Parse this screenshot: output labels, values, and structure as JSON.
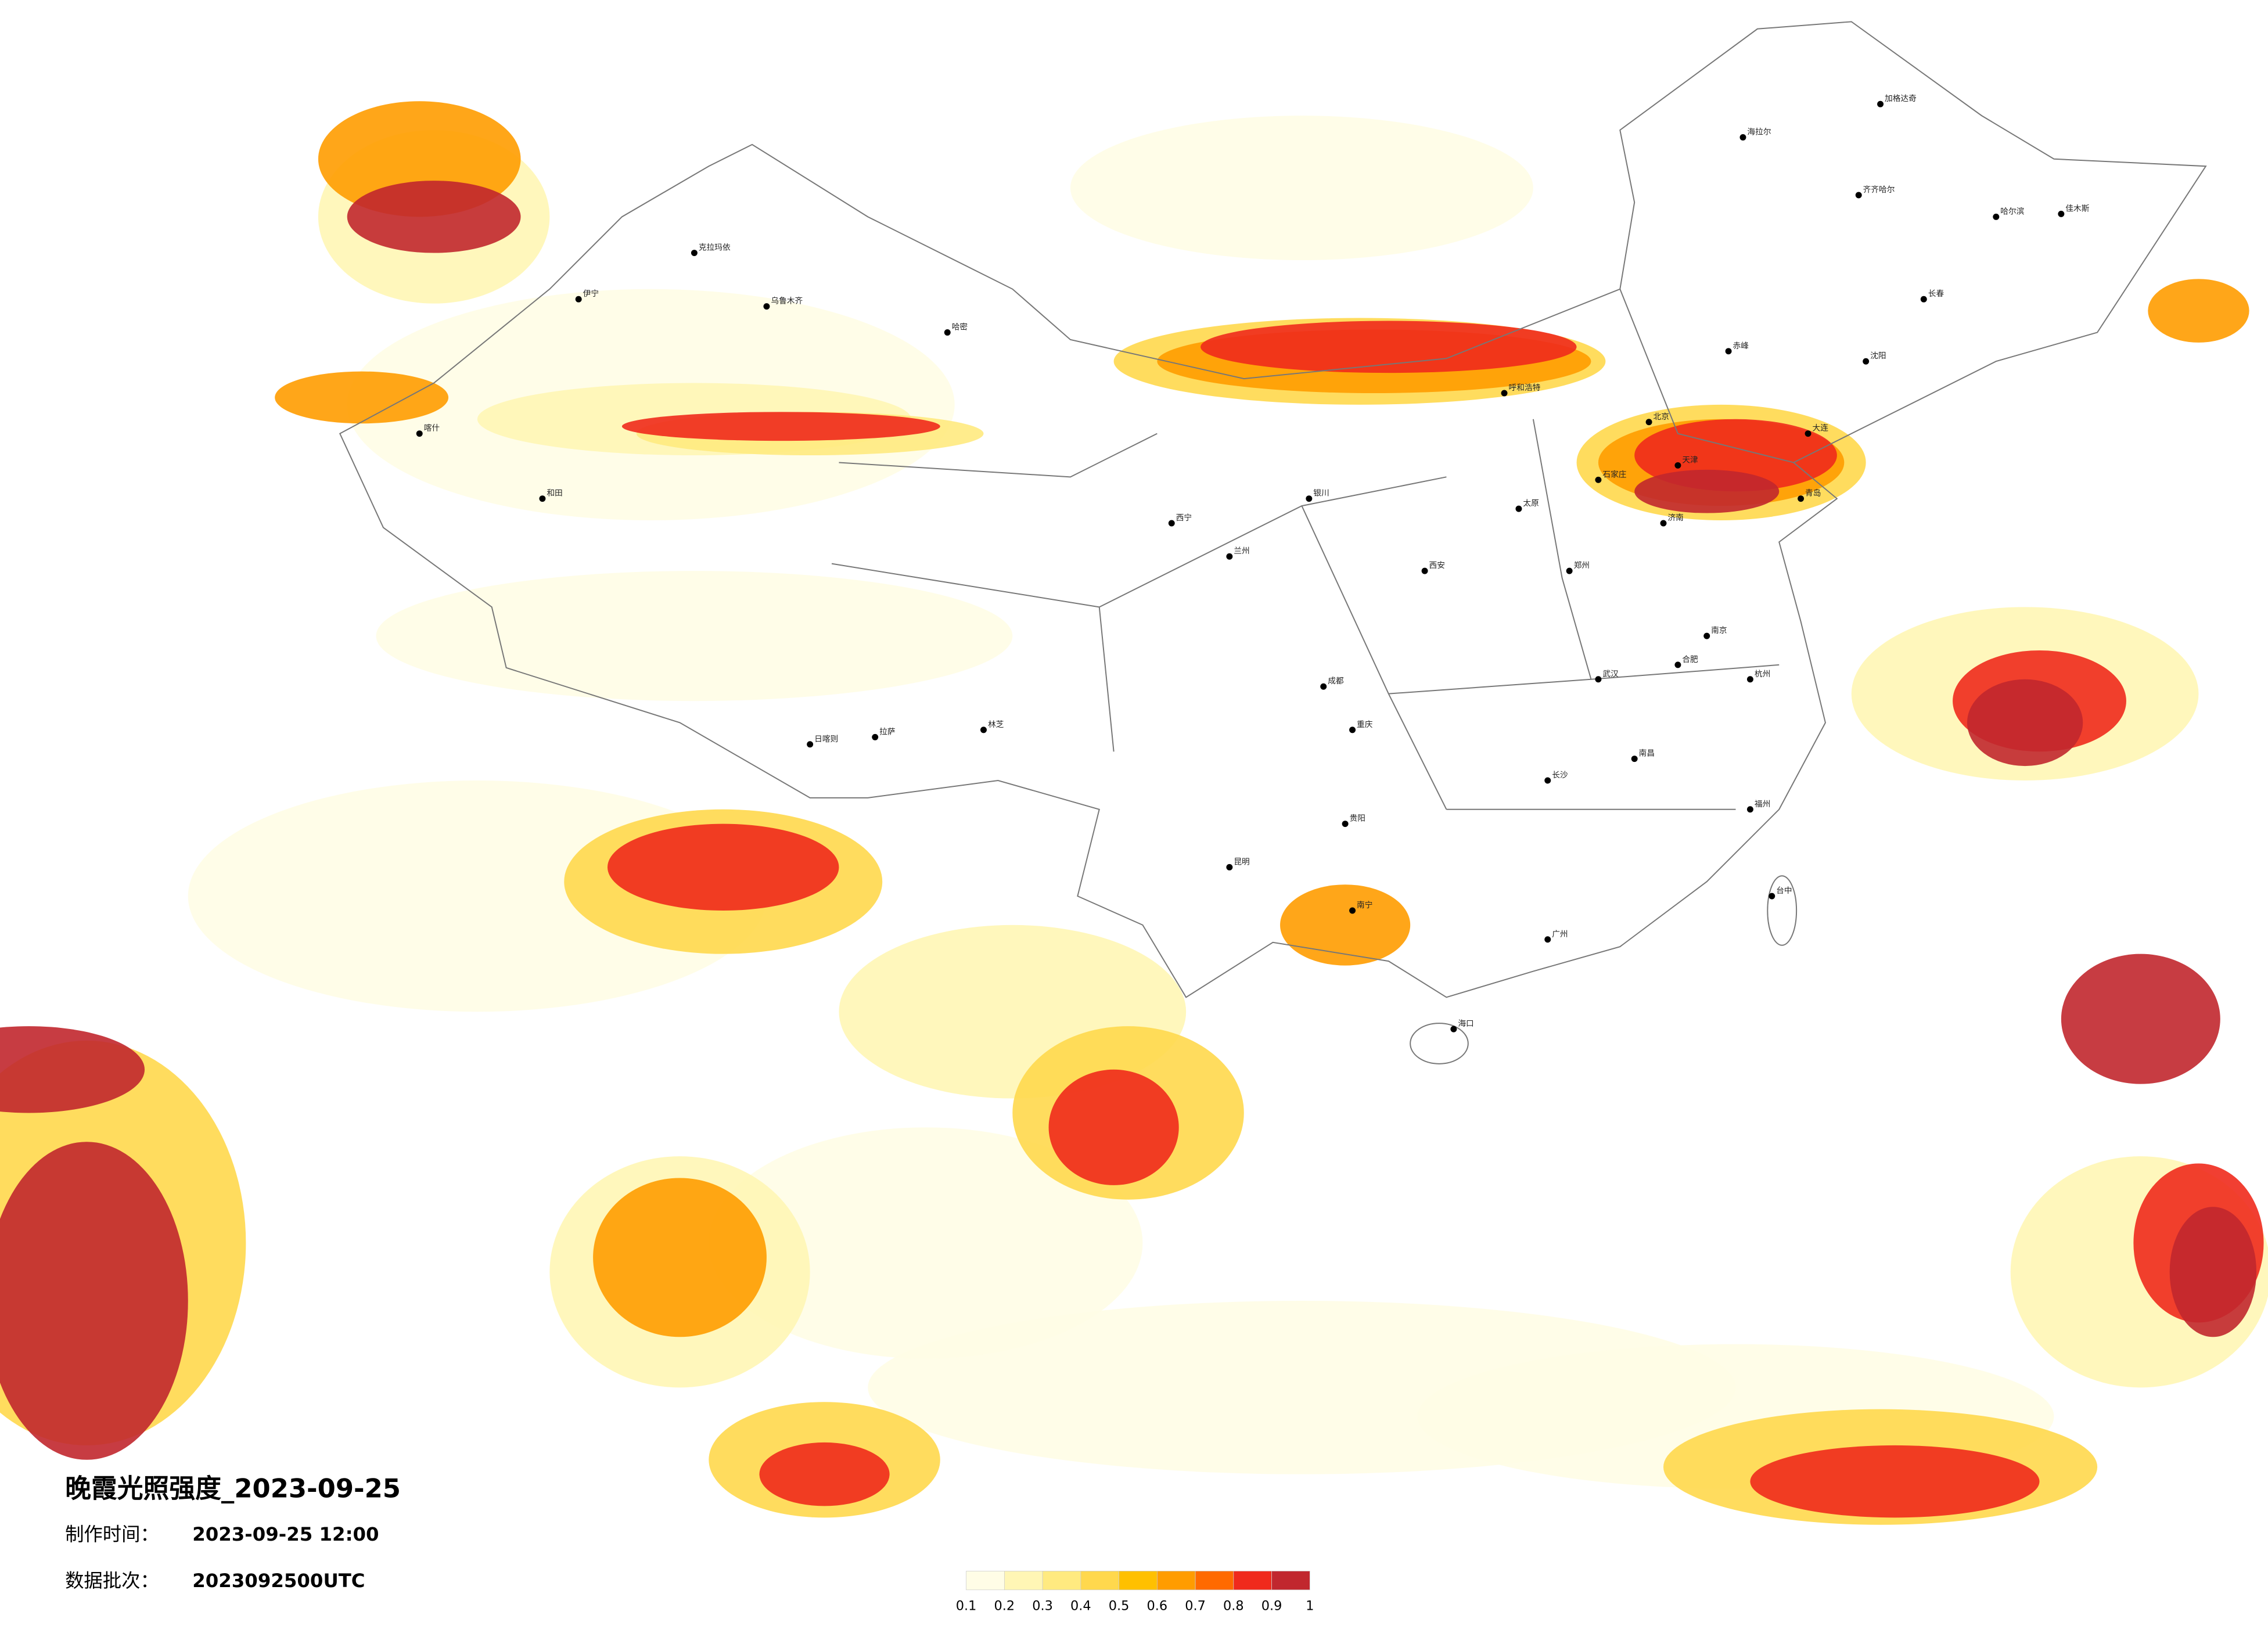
{
  "title": "晚霞光照强度_2023-09-25",
  "made_label": "制作时间：",
  "made_time": "2023-09-25 12:00",
  "batch_label": "数据批次：",
  "batch": "2023092500UTC",
  "colorbar": {
    "colors": [
      "#fffde6",
      "#fff6b5",
      "#ffea80",
      "#ffd84d",
      "#ffc000",
      "#ff9c00",
      "#ff6a00",
      "#f02a1c",
      "#c1272e"
    ],
    "ticks": [
      0.1,
      0.2,
      0.3,
      0.4,
      0.5,
      0.6,
      0.7,
      0.8,
      0.9,
      1
    ]
  },
  "cities": [
    "北京",
    "天津",
    "石家庄",
    "太原",
    "呼和浩特",
    "沈阳",
    "长春",
    "哈尔滨",
    "济南",
    "郑州",
    "西安",
    "兰州",
    "西宁",
    "银川",
    "乌鲁木齐",
    "拉萨",
    "成都",
    "重庆",
    "贵阳",
    "昆明",
    "南宁",
    "广州",
    "海口",
    "长沙",
    "武汉",
    "南昌",
    "福州",
    "杭州",
    "南京",
    "合肥",
    "台中",
    "伊宁",
    "喀什",
    "和田",
    "克拉玛依",
    "哈密",
    "日喀则",
    "林芝",
    "海拉尔",
    "加格达奇",
    "齐齐哈尔",
    "佳木斯",
    "赤峰",
    "大连",
    "青岛"
  ]
}
